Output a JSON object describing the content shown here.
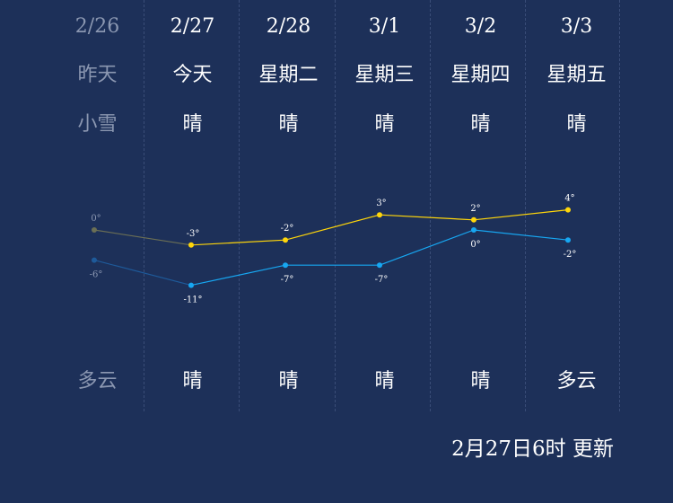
{
  "days": [
    {
      "date": "2/26",
      "name": "昨天",
      "weather_day": "小雪",
      "weather_night": "多云",
      "high": 0,
      "low": -6,
      "high_label": "0°",
      "low_label": "-6°",
      "past": true
    },
    {
      "date": "2/27",
      "name": "今天",
      "weather_day": "晴",
      "weather_night": "晴",
      "high": -3,
      "low": -11,
      "high_label": "-3°",
      "low_label": "-11°",
      "past": false
    },
    {
      "date": "2/28",
      "name": "星期二",
      "weather_day": "晴",
      "weather_night": "晴",
      "high": -2,
      "low": -7,
      "high_label": "-2°",
      "low_label": "-7°",
      "past": false
    },
    {
      "date": "3/1",
      "name": "星期三",
      "weather_day": "晴",
      "weather_night": "晴",
      "high": 3,
      "low": -7,
      "high_label": "3°",
      "low_label": "-7°",
      "past": false
    },
    {
      "date": "3/2",
      "name": "星期四",
      "weather_day": "晴",
      "weather_night": "晴",
      "high": 2,
      "low": 0,
      "high_label": "2°",
      "low_label": "0°",
      "past": false
    },
    {
      "date": "3/3",
      "name": "星期五",
      "weather_day": "晴",
      "weather_night": "多云",
      "high": 4,
      "low": -2,
      "high_label": "4°",
      "low_label": "-2°",
      "past": false
    }
  ],
  "updated_text": "2月27日6时 更新",
  "colors": {
    "background": "#1d3059",
    "high_line": "#ffd60a",
    "low_line": "#17a7f2",
    "past_high": "#6b6f55",
    "past_low": "#1e5a9a",
    "past_text": "#8b97b1"
  },
  "chart_data": {
    "type": "line",
    "categories": [
      "2/26",
      "2/27",
      "2/28",
      "3/1",
      "3/2",
      "3/3"
    ],
    "series": [
      {
        "values": [
          0,
          -3,
          -2,
          3,
          2,
          4
        ]
      },
      {
        "values": [
          -6,
          -11,
          -7,
          -7,
          0,
          -2
        ]
      }
    ]
  }
}
